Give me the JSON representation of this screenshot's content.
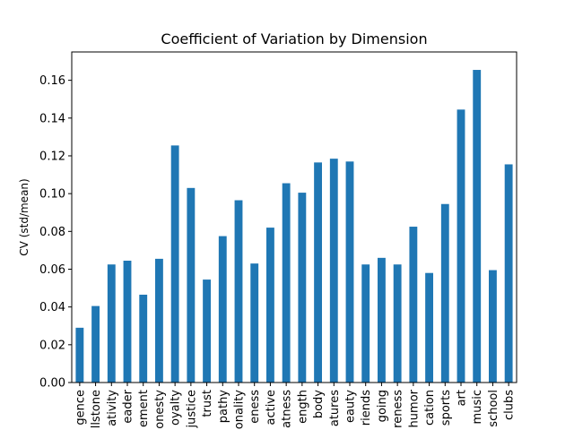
{
  "chart_data": {
    "type": "bar",
    "title": "Coefficient of Variation by Dimension",
    "xlabel": "",
    "ylabel": "CV (std/mean)",
    "ylim": [
      0,
      0.175
    ],
    "yticks": [
      "0.00",
      "0.02",
      "0.04",
      "0.06",
      "0.08",
      "0.10",
      "0.12",
      "0.14",
      "0.16"
    ],
    "categories": [
      "gence",
      "llstone",
      "ativity",
      "eader",
      "ement",
      "onesty",
      "oyalty",
      "justice",
      "trust",
      "pathy",
      "onality",
      "eness",
      "active",
      "atness",
      "ength",
      "body",
      "atures",
      "eauty",
      "riends",
      "going",
      "reness",
      "humor",
      "cation",
      "sports",
      "art",
      "music",
      "school",
      "clubs"
    ],
    "values": [
      0.029,
      0.0405,
      0.0625,
      0.0645,
      0.0465,
      0.0655,
      0.1255,
      0.103,
      0.0545,
      0.0775,
      0.0965,
      0.063,
      0.082,
      0.1055,
      0.1005,
      0.1165,
      0.1185,
      0.117,
      0.0625,
      0.066,
      0.0625,
      0.0825,
      0.058,
      0.0945,
      0.1445,
      0.1655,
      0.0595,
      0.1155
    ],
    "colors": {
      "bar": "#1f77b4"
    },
    "grid": false,
    "legend": "none"
  }
}
